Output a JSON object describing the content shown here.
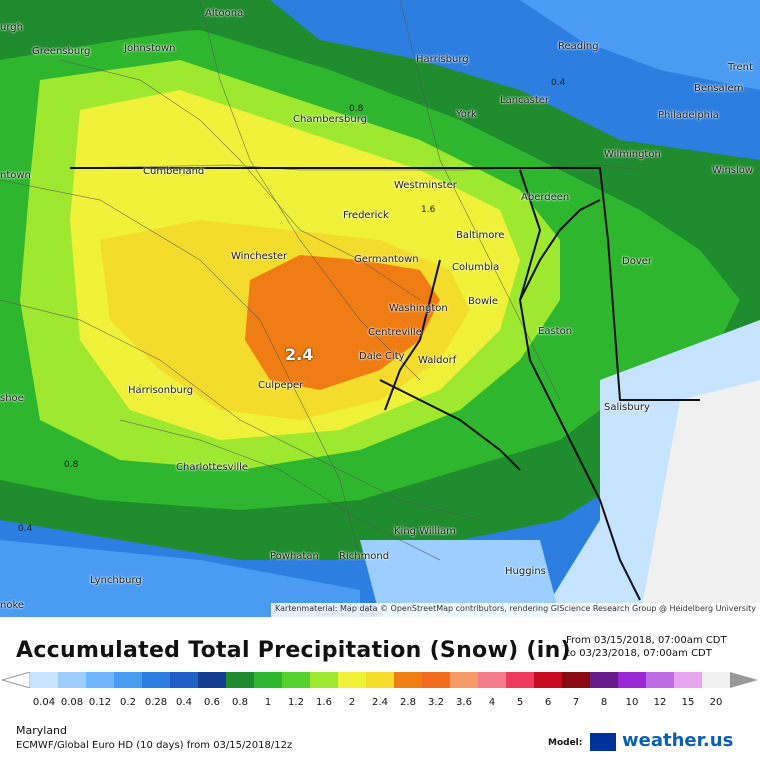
{
  "map": {
    "peak_label": "2.4",
    "attribution": "Kartenmaterial: Map data © OpenStreetMap contributors, rendering GIScience Research Group @ Heidelberg University",
    "cities": [
      {
        "name": "Altoona"
      },
      {
        "name": "urgh"
      },
      {
        "name": "Greensburg"
      },
      {
        "name": "Johnstown"
      },
      {
        "name": "Harrisburg"
      },
      {
        "name": "Reading"
      },
      {
        "name": "Trent"
      },
      {
        "name": "Bensalem"
      },
      {
        "name": "Lancaster"
      },
      {
        "name": "Philadelphia"
      },
      {
        "name": "Chambersburg"
      },
      {
        "name": "York"
      },
      {
        "name": "Cumberland"
      },
      {
        "name": "Westminster"
      },
      {
        "name": "Wilmington"
      },
      {
        "name": "Winslow"
      },
      {
        "name": "ntown"
      },
      {
        "name": "Aberdeen"
      },
      {
        "name": "Frederick"
      },
      {
        "name": "Baltimore"
      },
      {
        "name": "Winchester"
      },
      {
        "name": "Germantown"
      },
      {
        "name": "Columbia"
      },
      {
        "name": "Dover"
      },
      {
        "name": "Washington"
      },
      {
        "name": "Bowie"
      },
      {
        "name": "Easton"
      },
      {
        "name": "Centreville"
      },
      {
        "name": "Dale City"
      },
      {
        "name": "Waldorf"
      },
      {
        "name": "Harrisonburg"
      },
      {
        "name": "Culpeper"
      },
      {
        "name": "shoe"
      },
      {
        "name": "Salisbury"
      },
      {
        "name": "Charlottesville"
      },
      {
        "name": "King William"
      },
      {
        "name": "Powhatan"
      },
      {
        "name": "Richmond"
      },
      {
        "name": "Lynchburg"
      },
      {
        "name": "Huggins"
      },
      {
        "name": "noke"
      }
    ],
    "contours": [
      "0.4",
      "0.8",
      "1.6",
      "0.8",
      "0.4"
    ]
  },
  "legend": {
    "title": "Accumulated Total Precipitation (Snow) (in)",
    "from": "From 03/15/2018, 07:00am CDT",
    "to": "to 03/23/2018, 07:00am CDT",
    "ticks": [
      "0.04",
      "0.08",
      "0.12",
      "0.2",
      "0.28",
      "0.4",
      "0.6",
      "0.8",
      "1",
      "1.2",
      "1.6",
      "2",
      "2.4",
      "2.8",
      "3.2",
      "3.6",
      "4",
      "5",
      "6",
      "7",
      "8",
      "10",
      "12",
      "15",
      "20"
    ],
    "colors": [
      "#c6e4ff",
      "#9ccfff",
      "#6fb6ff",
      "#4a9cf2",
      "#2c7fe0",
      "#1f5fc8",
      "#143c8f",
      "#1f8c2e",
      "#2fb62f",
      "#57d12d",
      "#9ee82f",
      "#f0f23a",
      "#f4dc2c",
      "#f07d13",
      "#f26c1e",
      "#f79a66",
      "#f57c8a",
      "#ee3a5c",
      "#c80a1e",
      "#8c0a14",
      "#6b1a8c",
      "#9c27d6",
      "#c06be6",
      "#e9a6f0",
      "#f0f0f0"
    ],
    "region": "Maryland",
    "model": "ECMWF/Global Euro HD (10 days) from 03/15/2018/12z",
    "model_label": "Model:",
    "brand": "weather.us"
  }
}
